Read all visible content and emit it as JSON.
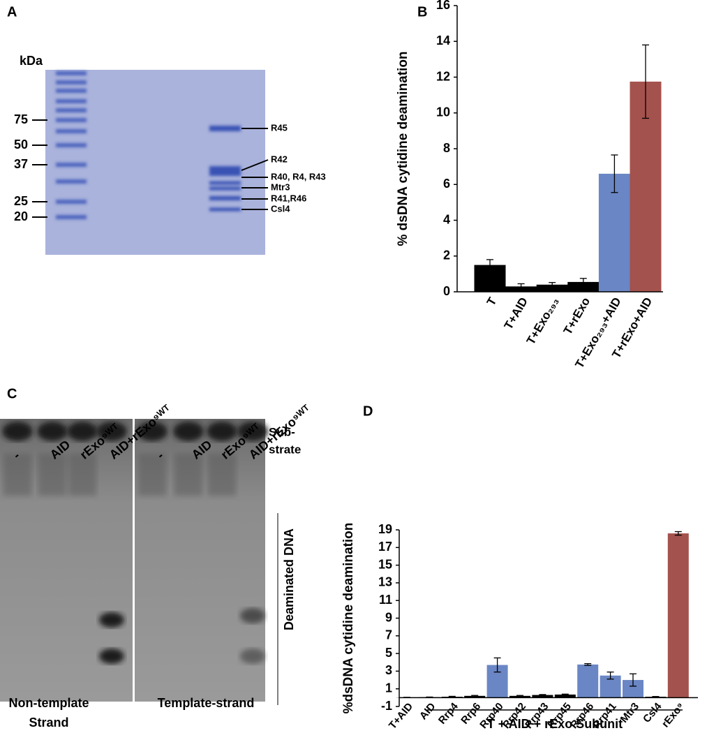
{
  "gel_a": {
    "panel": "A",
    "unit": "kDa",
    "markers": [
      "75",
      "50",
      "37",
      "25",
      "20"
    ],
    "bands": [
      "R45",
      "R42",
      "R40, R4, R43",
      "Mtr3",
      "R41,R46",
      "Csl4"
    ]
  },
  "gel_c": {
    "panel": "C",
    "lanes_left": [
      "-",
      "AID",
      "rExo⁹ᵂᵀ",
      "AID+rExo⁹ᵂᵀ"
    ],
    "lanes_right": [
      "-",
      "AID",
      "rExo⁹ᵂᵀ",
      "AID+rExo⁹ᵂᵀ"
    ],
    "substrate": [
      "Sub-",
      "strate"
    ],
    "product": "Deaminated DNA",
    "left_caption": [
      "Non-template",
      "Strand"
    ],
    "right_caption": "Template-strand"
  },
  "chart_data": [
    {
      "type": "bar",
      "panel": "B",
      "ylabel": "% dsDNA cytidine deamination",
      "categories": [
        "T",
        "T+AID",
        "T+Exo₂₉₃",
        "T+rExo",
        "T+Exo₂₉₃+AID",
        "T+rExo+AID"
      ],
      "values": [
        1.5,
        0.3,
        0.4,
        0.55,
        6.6,
        11.75
      ],
      "errors": [
        0.3,
        0.15,
        0.12,
        0.2,
        1.05,
        2.05
      ],
      "colors": [
        "#000000",
        "#000000",
        "#000000",
        "#000000",
        "#6a86c4",
        "#a4524d"
      ],
      "ylim": [
        0,
        16
      ],
      "yticks": [
        0,
        2,
        4,
        6,
        8,
        10,
        12,
        14,
        16
      ]
    },
    {
      "type": "bar",
      "panel": "D",
      "ylabel": "%dsDNA cytidine deamination",
      "categories": [
        "T+AID",
        "AID",
        "Rrp4",
        "Rrp6",
        "Rrp40",
        "Rrp42",
        "Rrp43",
        "Rrp45",
        "Rrp46",
        "Rrp41",
        "Mtr3",
        "Csl4",
        "rExo⁹"
      ],
      "values": [
        0.02,
        0.05,
        0.1,
        0.2,
        3.7,
        0.2,
        0.3,
        0.35,
        3.75,
        2.5,
        2.0,
        0.1,
        18.6
      ],
      "errors": [
        0.02,
        0.02,
        0.05,
        0.05,
        0.8,
        0.05,
        0.05,
        0.05,
        0.1,
        0.4,
        0.7,
        0.03,
        0.2
      ],
      "colors": [
        "#000000",
        "#000000",
        "#000000",
        "#000000",
        "#6a86c4",
        "#000000",
        "#000000",
        "#000000",
        "#6a86c4",
        "#6a86c4",
        "#6a86c4",
        "#000000",
        "#a4524d"
      ],
      "category_colors": [
        "#000000",
        "#000000",
        "#000000",
        "#000000",
        "#a4524d",
        "#000000",
        "#000000",
        "#000000",
        "#a4524d",
        "#a4524d",
        "#a4524d",
        "#000000",
        "#000000"
      ],
      "group_label": "T + AID + rExo Subunit",
      "ylim": [
        -1,
        19
      ],
      "yticks": [
        -1,
        1,
        3,
        5,
        7,
        9,
        11,
        13,
        15,
        17,
        19
      ]
    }
  ]
}
